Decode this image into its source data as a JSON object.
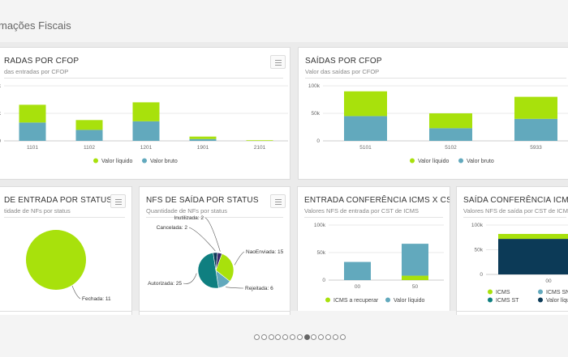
{
  "header": {
    "title": "mações Fiscais"
  },
  "colors": {
    "green": "#a8e10c",
    "blue": "#62a9bd",
    "teal": "#0f7f80",
    "navy": "#0c3a57",
    "purple": "#3d2a6e"
  },
  "icons": {
    "menu": "hamburger-menu-icon"
  },
  "cards": {
    "entradas_cfop": {
      "title": "RADAS POR CFOP",
      "subtitle": "das entradas por CFOP"
    },
    "saidas_cfop": {
      "title": "SAÍDAS POR CFOP",
      "subtitle": "Valor das saídas por CFOP"
    },
    "nf_entrada": {
      "title": "DE ENTRADA POR STATUS",
      "subtitle": "tidade de NFs por status"
    },
    "nf_saida": {
      "title": "NFS DE SAÍDA POR STATUS",
      "subtitle": "Quantidade de NFs por status"
    },
    "entrada_icms": {
      "title": "ENTRADA CONFERÊNCIA ICMS X CST",
      "subtitle": "Valores NFS de entrada por CST de ICMS"
    },
    "saida_icms": {
      "title": "SAÍDA CONFERÊNCIA ICMS X CS",
      "subtitle": "Valores NFS de saída por CST de ICMS"
    }
  },
  "chart_data": [
    {
      "id": "entradas_cfop",
      "type": "bar",
      "stacked": true,
      "categories": [
        "1101",
        "1102",
        "1201",
        "1901",
        "2101"
      ],
      "y_tick_labels": [
        "k",
        "k",
        "0"
      ],
      "series": [
        {
          "name": "Valor bruto",
          "color": "#62a9bd",
          "values": [
            30,
            18,
            32,
            3,
            0
          ]
        },
        {
          "name": "Valor líquido",
          "color": "#a8e10c",
          "values": [
            29,
            16,
            31,
            4,
            1
          ]
        }
      ],
      "legend": [
        "Valor líquido",
        "Valor bruto"
      ],
      "ylim": [
        0,
        90
      ]
    },
    {
      "id": "saidas_cfop",
      "type": "bar",
      "stacked": true,
      "categories": [
        "5101",
        "5102",
        "5933"
      ],
      "y_tick_labels": [
        "100k",
        "50k",
        "0"
      ],
      "series": [
        {
          "name": "Valor bruto",
          "color": "#62a9bd",
          "values": [
            45,
            23,
            40
          ]
        },
        {
          "name": "Valor líquido",
          "color": "#a8e10c",
          "values": [
            45,
            27,
            40
          ]
        }
      ],
      "legend": [
        "Valor líquido",
        "Valor bruto"
      ],
      "ylim": [
        0,
        100
      ]
    },
    {
      "id": "nf_entrada",
      "type": "pie",
      "slices": [
        {
          "label": "Fechada: 11",
          "value": 11,
          "color": "#a8e10c"
        }
      ]
    },
    {
      "id": "nf_saida",
      "type": "pie",
      "slices": [
        {
          "label": "NaoEnviada: 15",
          "value": 15,
          "color": "#a8e10c"
        },
        {
          "label": "Rejeitada: 6",
          "value": 6,
          "color": "#62a9bd"
        },
        {
          "label": "Autorizada: 25",
          "value": 25,
          "color": "#0f7f80"
        },
        {
          "label": "Cancelada: 2",
          "value": 2,
          "color": "#0c3a57"
        },
        {
          "label": "Inutilizada: 2",
          "value": 2,
          "color": "#3d2a6e"
        }
      ]
    },
    {
      "id": "entrada_icms",
      "type": "bar",
      "stacked": true,
      "categories": [
        "00",
        "50"
      ],
      "y_tick_labels": [
        "100k",
        "50k",
        "0"
      ],
      "series": [
        {
          "name": "ICMS a recuperar",
          "color": "#a8e10c",
          "values": [
            0,
            8
          ]
        },
        {
          "name": "Valor líquido",
          "color": "#62a9bd",
          "values": [
            33,
            58
          ]
        }
      ],
      "legend": [
        "ICMS a recuperar",
        "Valor líquido"
      ],
      "ylim": [
        0,
        100
      ]
    },
    {
      "id": "saida_icms",
      "type": "bar",
      "stacked": true,
      "categories": [
        "00"
      ],
      "y_tick_labels": [
        "100k",
        "50k",
        "0"
      ],
      "series": [
        {
          "name": "Valor líquido",
          "color": "#0c3a57",
          "values": [
            72
          ]
        },
        {
          "name": "ICMS",
          "color": "#a8e10c",
          "values": [
            10
          ]
        }
      ],
      "legend": [
        "ICMS",
        "ICMS SN",
        "ICMS ST",
        "Valor líquido"
      ],
      "legend_colors": [
        "#a8e10c",
        "#62a9bd",
        "#0f7f80",
        "#0c3a57"
      ],
      "ylim": [
        0,
        100
      ]
    }
  ],
  "pager": {
    "count": 13,
    "active": 7
  }
}
